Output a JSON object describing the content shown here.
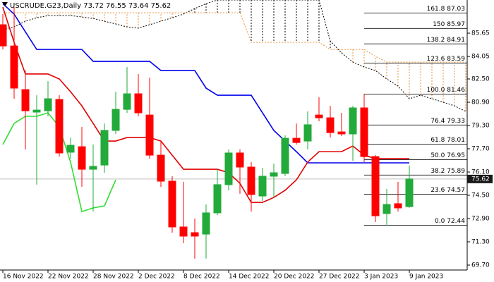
{
  "chart_data": {
    "type": "candlestick",
    "title": "USCRUDE.G23,Daily  73.72 76.55 73.64 75.62",
    "categories": [
      "16 Nov 2022",
      null,
      null,
      null,
      "22 Nov 2022",
      null,
      null,
      null,
      "28 Nov 2022",
      null,
      null,
      null,
      "2 Dec 2022",
      null,
      null,
      null,
      "8 Dec 2022",
      null,
      null,
      null,
      "14 Dec 2022",
      null,
      null,
      null,
      "20 Dec 2022",
      null,
      null,
      null,
      "27 Dec 2022",
      null,
      null,
      null,
      "3 Jan 2023",
      null,
      null,
      null,
      "9 Jan 2023"
    ],
    "open": [
      86.23,
      84.77,
      81.77,
      80.22,
      80.31,
      81.09,
      77.46,
      77.84,
      76.29,
      76.58,
      78.96,
      80.41,
      81.48,
      80.02,
      77.26,
      75.47,
      72.32,
      71.93,
      71.83,
      73.29,
      75.23,
      77.41,
      76.44,
      74.45,
      75.81,
      76.0,
      78.42,
      78.23,
      80.02,
      79.83,
      78.86,
      78.72,
      80.51,
      77.16,
      73.24,
      73.92,
      73.72
    ],
    "high": [
      86.96,
      87.44,
      83.08,
      81.38,
      82.35,
      81.38,
      78.47,
      79.2,
      77.99,
      79.44,
      81.62,
      83.32,
      82.84,
      82.59,
      78.23,
      75.81,
      75.42,
      72.9,
      73.87,
      76.29,
      77.65,
      77.65,
      76.78,
      76.39,
      76.68,
      78.62,
      79.44,
      80.27,
      81.24,
      80.65,
      80.17,
      80.65,
      81.48,
      77.26,
      74.93,
      75.42,
      76.55
    ],
    "low": [
      84.53,
      81.14,
      77.65,
      75.23,
      79.93,
      77.16,
      77.02,
      75.08,
      73.38,
      76.05,
      78.72,
      80.17,
      79.93,
      77.02,
      75.08,
      71.93,
      71.2,
      70.14,
      70.14,
      73.14,
      74.84,
      74.6,
      73.38,
      74.11,
      74.35,
      75.81,
      77.99,
      77.65,
      79.59,
      78.47,
      78.57,
      76.87,
      76.78,
      72.66,
      72.41,
      73.38,
      73.64
    ],
    "close": [
      84.77,
      81.87,
      80.31,
      80.36,
      81.14,
      77.41,
      77.94,
      76.29,
      76.49,
      78.96,
      80.41,
      81.48,
      80.17,
      77.26,
      75.47,
      72.32,
      71.69,
      71.69,
      73.29,
      75.23,
      77.41,
      76.44,
      74.55,
      75.81,
      76.05,
      78.42,
      78.13,
      79.35,
      79.83,
      78.81,
      78.72,
      80.51,
      77.16,
      73.09,
      73.87,
      73.63,
      75.62
    ],
    "up_color": "#22aa3a",
    "down_color": "#ff0000",
    "lines": [
      {
        "color": "#0000ee",
        "values": [
          87.68,
          86.96,
          85.74,
          84.53,
          84.53,
          84.53,
          84.53,
          84.53,
          83.71,
          83.71,
          83.71,
          83.71,
          83.71,
          83.71,
          83.08,
          83.08,
          83.08,
          83.08,
          81.87,
          81.38,
          81.38,
          81.38,
          81.38,
          80.17,
          78.96,
          78.23,
          77.5,
          76.73,
          76.73,
          76.73,
          76.73,
          76.73,
          76.73,
          76.73,
          76.73,
          76.73,
          76.73
        ]
      },
      {
        "color": "#e00000",
        "values": [
          87.44,
          85.02,
          82.84,
          82.84,
          82.84,
          82.5,
          81.62,
          80.65,
          79.44,
          78.23,
          78.23,
          78.47,
          78.47,
          78.47,
          78.23,
          77.26,
          76.29,
          76.29,
          76.29,
          76.29,
          76.05,
          75.32,
          74.01,
          74.01,
          74.35,
          74.84,
          75.56,
          76.78,
          77.5,
          77.5,
          77.5,
          77.89,
          77.26,
          77.02,
          77.02,
          77.02,
          77.02
        ]
      },
      {
        "color": "#33dd33",
        "values": [
          77.99,
          79.44,
          79.93,
          79.93,
          80.17,
          79.2,
          76.78,
          73.38,
          73.63,
          73.77,
          75.56,
          null,
          null,
          null,
          null,
          null,
          null,
          null,
          null,
          null,
          null,
          null,
          null,
          null,
          null,
          null,
          null,
          null,
          null,
          null,
          null,
          null,
          null,
          null,
          null,
          null,
          null
        ]
      }
    ],
    "cloud": {
      "span_a": {
        "color": "#000000",
        "values": [
          85.89,
          86.08,
          86.47,
          86.71,
          86.86,
          86.86,
          86.86,
          86.76,
          86.66,
          86.47,
          86.28,
          86.08,
          85.99,
          86.23,
          86.47,
          86.71,
          86.96,
          87.34,
          87.68,
          87.93,
          87.93,
          87.93,
          87.93,
          87.93,
          87.93,
          87.93,
          87.93,
          87.93,
          87.93,
          85.11,
          84.29,
          83.66,
          83.32,
          83.08,
          82.5,
          82.01,
          81.14,
          81.38,
          81.14,
          80.9,
          80.65,
          80.27
        ]
      },
      "span_b": {
        "color": "#e69138",
        "values": [
          87.05,
          87.05,
          87.05,
          87.05,
          87.05,
          87.05,
          87.05,
          87.05,
          87.05,
          87.05,
          87.05,
          87.05,
          87.05,
          87.05,
          87.05,
          87.05,
          87.05,
          87.05,
          87.05,
          87.05,
          87.05,
          87.05,
          85.02,
          85.02,
          85.02,
          85.02,
          85.02,
          85.02,
          85.02,
          84.53,
          84.53,
          84.53,
          84.53,
          84.05,
          83.66,
          83.66,
          83.66,
          83.66,
          83.66,
          83.66,
          83.66,
          83.66
        ]
      }
    },
    "fib_levels": [
      {
        "value": 87.03,
        "label": "161.8 87.03"
      },
      {
        "value": 85.97,
        "label": "150 85.97"
      },
      {
        "value": 84.91,
        "label": "138.2 84.91"
      },
      {
        "value": 83.59,
        "label": "123.6 83.59"
      },
      {
        "value": 81.46,
        "label": "100.0 81.46"
      },
      {
        "value": 79.33,
        "label": "76.4 79.33"
      },
      {
        "value": 78.01,
        "label": "61.8 78.01"
      },
      {
        "value": 76.95,
        "label": "50.0 76.95"
      },
      {
        "value": 75.89,
        "label": "38.2 75.89"
      },
      {
        "value": 74.57,
        "label": "23.6 74.57"
      },
      {
        "value": 72.44,
        "label": "0.0 72.44"
      }
    ],
    "fib_color": "#333333",
    "current_price": 75.62,
    "ylim": [
      69.36,
      87.93
    ],
    "yticks": [
      85.65,
      84.05,
      {
        "value": 82.5,
        "label": "82.50"
      },
      {
        "value": 80.9,
        "label": "80.90"
      },
      {
        "value": 79.3,
        "label": "79.30"
      },
      {
        "value": 77.7,
        "label": "77.70"
      },
      {
        "value": 76.1,
        "label": "76.10"
      },
      {
        "value": 74.5,
        "label": "74.50"
      },
      {
        "value": 72.9,
        "label": "72.90"
      },
      {
        "value": 71.3,
        "label": "71.30"
      },
      {
        "value": 69.7,
        "label": "69.70"
      }
    ]
  }
}
